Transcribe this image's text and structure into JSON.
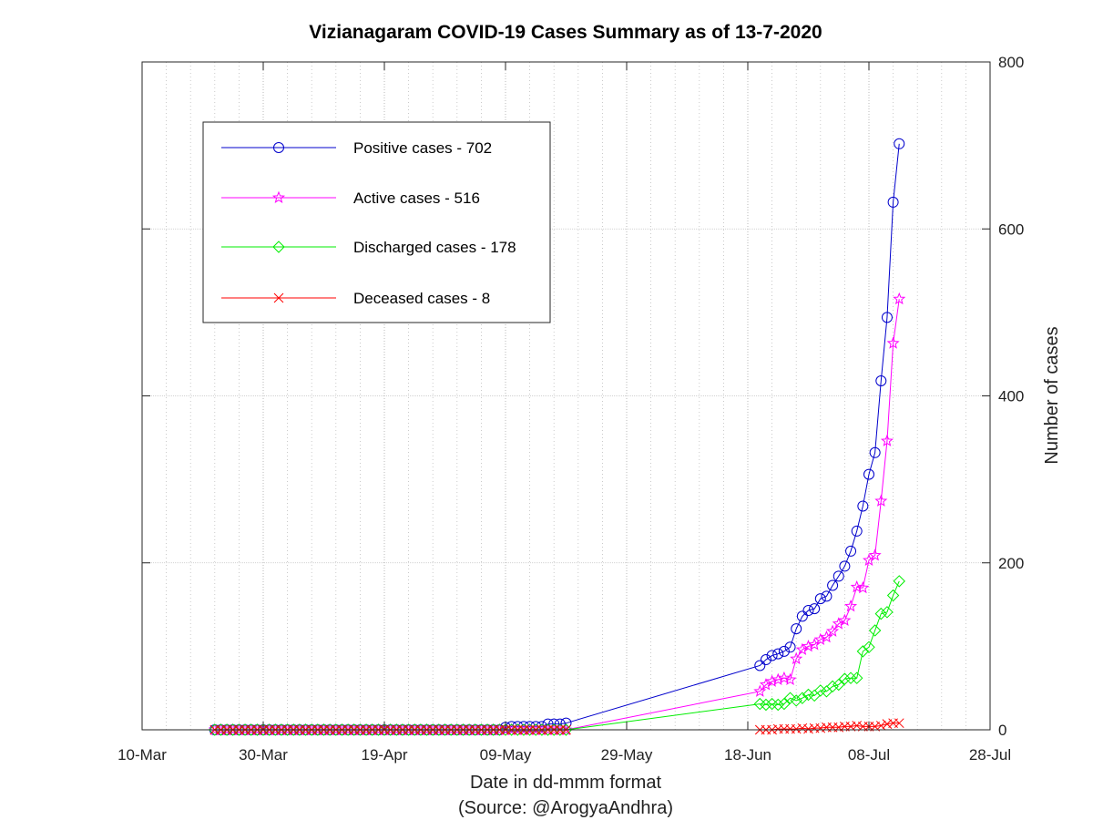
{
  "chart_data": {
    "type": "line",
    "title": "Vizianagaram COVID-19 Cases Summary as of 13-7-2020",
    "xlabel": "Date in dd-mmm format",
    "xlabel_source": "(Source: @ArogyaAndhra)",
    "ylabel": "Number of cases",
    "x_tick_labels": [
      "10-Mar",
      "30-Mar",
      "19-Apr",
      "09-May",
      "29-May",
      "18-Jun",
      "08-Jul",
      "28-Jul"
    ],
    "x_tick_dates": [
      "2020-03-10",
      "2020-03-30",
      "2020-04-19",
      "2020-05-09",
      "2020-05-29",
      "2020-06-18",
      "2020-07-08",
      "2020-07-28"
    ],
    "xlim": [
      "2020-03-10",
      "2020-07-28"
    ],
    "ylim": [
      0,
      800
    ],
    "y_ticks": [
      0,
      200,
      400,
      600,
      800
    ],
    "y_axis_side": "right",
    "grid": true,
    "minor_x_grid": true,
    "legend_position": "top-left",
    "dates": [
      "2020-03-22",
      "2020-03-23",
      "2020-03-24",
      "2020-03-25",
      "2020-03-26",
      "2020-03-27",
      "2020-03-28",
      "2020-03-29",
      "2020-03-30",
      "2020-03-31",
      "2020-04-01",
      "2020-04-02",
      "2020-04-03",
      "2020-04-04",
      "2020-04-05",
      "2020-04-06",
      "2020-04-07",
      "2020-04-08",
      "2020-04-09",
      "2020-04-10",
      "2020-04-11",
      "2020-04-12",
      "2020-04-13",
      "2020-04-14",
      "2020-04-15",
      "2020-04-16",
      "2020-04-17",
      "2020-04-18",
      "2020-04-19",
      "2020-04-20",
      "2020-04-21",
      "2020-04-22",
      "2020-04-23",
      "2020-04-24",
      "2020-04-25",
      "2020-04-26",
      "2020-04-27",
      "2020-04-28",
      "2020-04-29",
      "2020-04-30",
      "2020-05-01",
      "2020-05-02",
      "2020-05-03",
      "2020-05-04",
      "2020-05-05",
      "2020-05-06",
      "2020-05-07",
      "2020-05-08",
      "2020-05-09",
      "2020-05-10",
      "2020-05-11",
      "2020-05-12",
      "2020-05-13",
      "2020-05-14",
      "2020-05-15",
      "2020-05-16",
      "2020-05-17",
      "2020-05-18",
      "2020-05-19",
      "2020-06-20",
      "2020-06-21",
      "2020-06-22",
      "2020-06-23",
      "2020-06-24",
      "2020-06-25",
      "2020-06-26",
      "2020-06-27",
      "2020-06-28",
      "2020-06-29",
      "2020-06-30",
      "2020-07-01",
      "2020-07-02",
      "2020-07-03",
      "2020-07-04",
      "2020-07-05",
      "2020-07-06",
      "2020-07-07",
      "2020-07-08",
      "2020-07-09",
      "2020-07-10",
      "2020-07-11",
      "2020-07-12",
      "2020-07-13"
    ],
    "series": [
      {
        "name": "Positive cases - 702",
        "color": "#0000cc",
        "marker": "circle",
        "values": [
          0,
          0,
          0,
          0,
          0,
          0,
          0,
          0,
          0,
          0,
          0,
          0,
          0,
          0,
          0,
          0,
          0,
          0,
          0,
          0,
          0,
          0,
          0,
          0,
          0,
          0,
          0,
          0,
          0,
          0,
          0,
          0,
          0,
          0,
          0,
          0,
          0,
          0,
          0,
          0,
          0,
          0,
          0,
          0,
          0,
          0,
          0,
          0,
          3,
          4,
          4,
          4,
          4,
          4,
          4,
          7,
          7,
          7,
          8,
          77,
          84,
          89,
          91,
          94,
          99,
          121,
          136,
          143,
          145,
          157,
          160,
          173,
          184,
          196,
          214,
          238,
          268,
          306,
          332,
          418,
          494,
          632,
          702
        ]
      },
      {
        "name": "Active cases - 516",
        "color": "#ff00ff",
        "marker": "star",
        "values": [
          0,
          0,
          0,
          0,
          0,
          0,
          0,
          0,
          0,
          0,
          0,
          0,
          0,
          0,
          0,
          0,
          0,
          0,
          0,
          0,
          0,
          0,
          0,
          0,
          0,
          0,
          0,
          0,
          0,
          0,
          0,
          0,
          0,
          0,
          0,
          0,
          0,
          0,
          0,
          0,
          0,
          0,
          0,
          0,
          0,
          0,
          0,
          0,
          0,
          0,
          0,
          0,
          0,
          0,
          0,
          0,
          0,
          0,
          0,
          46,
          54,
          58,
          60,
          62,
          60,
          85,
          96,
          100,
          102,
          108,
          111,
          118,
          127,
          131,
          148,
          171,
          170,
          203,
          209,
          274,
          346,
          463,
          516
        ]
      },
      {
        "name": "Discharged cases - 178",
        "color": "#00ee00",
        "marker": "diamond",
        "values": [
          0,
          0,
          0,
          0,
          0,
          0,
          0,
          0,
          0,
          0,
          0,
          0,
          0,
          0,
          0,
          0,
          0,
          0,
          0,
          0,
          0,
          0,
          0,
          0,
          0,
          0,
          0,
          0,
          0,
          0,
          0,
          0,
          0,
          0,
          0,
          0,
          0,
          0,
          0,
          0,
          0,
          0,
          0,
          0,
          0,
          0,
          0,
          0,
          0,
          0,
          0,
          0,
          0,
          0,
          0,
          0,
          0,
          0,
          0,
          31,
          30,
          31,
          30,
          31,
          38,
          35,
          38,
          42,
          41,
          47,
          46,
          52,
          54,
          61,
          62,
          62,
          94,
          99,
          119,
          139,
          141,
          161,
          178
        ]
      },
      {
        "name": "Deceased cases - 8",
        "color": "#ff0000",
        "marker": "x",
        "values": [
          0,
          0,
          0,
          0,
          0,
          0,
          0,
          0,
          0,
          0,
          0,
          0,
          0,
          0,
          0,
          0,
          0,
          0,
          0,
          0,
          0,
          0,
          0,
          0,
          0,
          0,
          0,
          0,
          0,
          0,
          0,
          0,
          0,
          0,
          0,
          0,
          0,
          0,
          0,
          0,
          0,
          0,
          0,
          0,
          0,
          0,
          0,
          0,
          0,
          0,
          0,
          0,
          0,
          0,
          0,
          0,
          0,
          0,
          0,
          0,
          0,
          0,
          1,
          1,
          1,
          1,
          2,
          1,
          2,
          2,
          3,
          3,
          3,
          4,
          4,
          5,
          4,
          4,
          4,
          5,
          7,
          8,
          8
        ]
      }
    ]
  }
}
